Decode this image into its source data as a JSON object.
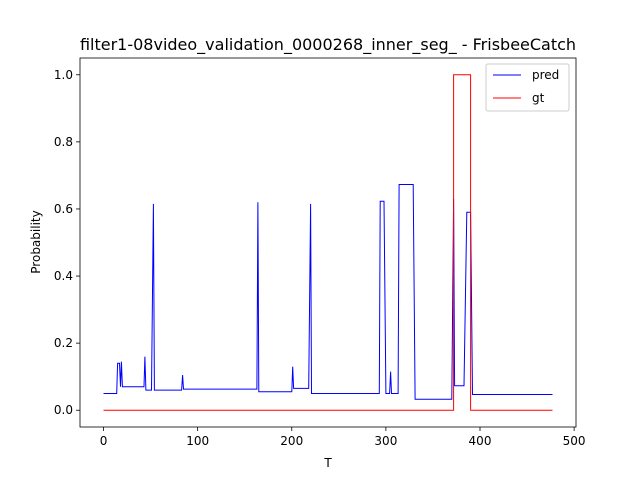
{
  "chart_data": {
    "type": "line",
    "title": "filter1-08video_validation_0000268_inner_seg_ - FrisbeeCatch",
    "xlabel": "T",
    "ylabel": "Probability",
    "xlim": [
      -25,
      502
    ],
    "ylim": [
      -0.05,
      1.05
    ],
    "xticks": [
      0,
      100,
      200,
      300,
      400,
      500
    ],
    "yticks": [
      0.0,
      0.2,
      0.4,
      0.6,
      0.8,
      1.0
    ],
    "xtick_labels": [
      "0",
      "100",
      "200",
      "300",
      "400",
      "500"
    ],
    "ytick_labels": [
      "0.0",
      "0.2",
      "0.4",
      "0.6",
      "0.8",
      "1.0"
    ],
    "grid": false,
    "legend_position": "top-right",
    "series": [
      {
        "name": "pred",
        "color": "#0000ff",
        "x": [
          0,
          14,
          15,
          17,
          18,
          19,
          20,
          21,
          43,
          44,
          45,
          51,
          53,
          54,
          55,
          83,
          84,
          85,
          163,
          164,
          165,
          200,
          201,
          202,
          218,
          220,
          221,
          222,
          293,
          294,
          298,
          300,
          304,
          305,
          306,
          313,
          314,
          329,
          331,
          370,
          372,
          373,
          375,
          383,
          386,
          390,
          392,
          477
        ],
        "y": [
          0.05,
          0.05,
          0.14,
          0.14,
          0.07,
          0.145,
          0.07,
          0.07,
          0.07,
          0.16,
          0.06,
          0.06,
          0.615,
          0.06,
          0.06,
          0.06,
          0.105,
          0.063,
          0.063,
          0.62,
          0.055,
          0.055,
          0.13,
          0.065,
          0.065,
          0.615,
          0.05,
          0.05,
          0.05,
          0.623,
          0.623,
          0.05,
          0.05,
          0.115,
          0.05,
          0.05,
          0.673,
          0.673,
          0.033,
          0.033,
          0.63,
          0.073,
          0.073,
          0.073,
          0.59,
          0.59,
          0.047,
          0.047
        ]
      },
      {
        "name": "gt",
        "color": "#ff0000",
        "x": [
          0,
          372,
          372,
          390,
          390,
          477
        ],
        "y": [
          0,
          0,
          1,
          1,
          0,
          0
        ]
      }
    ]
  }
}
